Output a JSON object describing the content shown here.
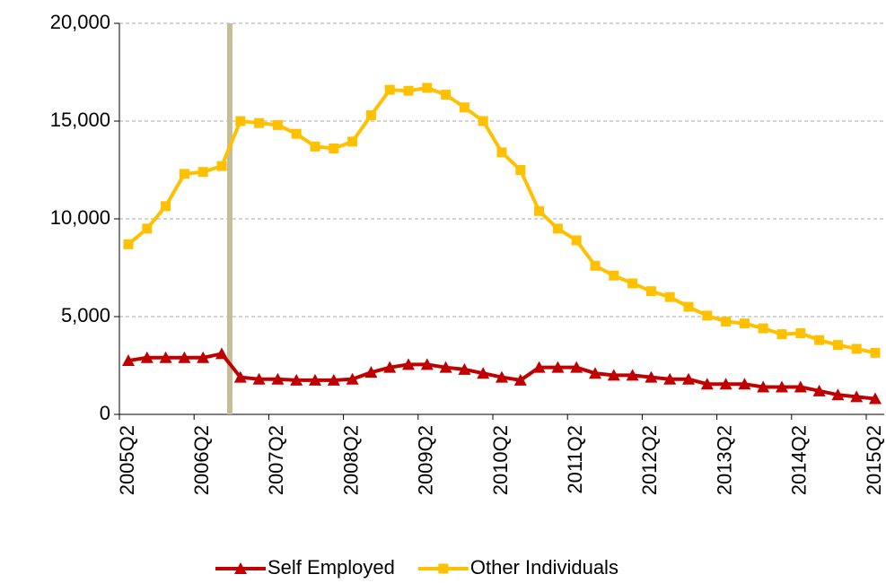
{
  "chart_data": {
    "type": "line",
    "categories": [
      "2005Q2",
      null,
      null,
      null,
      "2006Q2",
      null,
      null,
      null,
      "2007Q2",
      null,
      null,
      null,
      "2008Q2",
      null,
      null,
      null,
      "2009Q2",
      null,
      null,
      null,
      "2010Q2",
      null,
      null,
      null,
      "2011Q2",
      null,
      null,
      null,
      "2012Q2",
      null,
      null,
      null,
      "2013Q2",
      null,
      null,
      null,
      "2014Q2",
      null,
      null,
      null,
      "2015Q2"
    ],
    "series": [
      {
        "name": "Self Employed",
        "color": "#c00000",
        "marker": "triangle",
        "values": [
          2750,
          2900,
          2900,
          2900,
          2900,
          3100,
          1900,
          1800,
          1800,
          1750,
          1750,
          1750,
          1800,
          2150,
          2400,
          2550,
          2550,
          2400,
          2300,
          2100,
          1900,
          1750,
          2400,
          2400,
          2400,
          2100,
          2000,
          2000,
          1900,
          1800,
          1800,
          1550,
          1550,
          1550,
          1400,
          1400,
          1400,
          1200,
          1000,
          900,
          800
        ]
      },
      {
        "name": "Other Individuals",
        "color": "#ffc000",
        "marker": "square",
        "values": [
          8700,
          9500,
          10650,
          12300,
          12400,
          12700,
          15000,
          14900,
          14800,
          14350,
          13700,
          13600,
          13950,
          15300,
          16600,
          16550,
          16700,
          16350,
          15700,
          15000,
          13400,
          12500,
          10400,
          9500,
          8900,
          7600,
          7100,
          6700,
          6300,
          6000,
          5500,
          5050,
          4750,
          4650,
          4400,
          4100,
          4150,
          3800,
          3550,
          3350,
          3150
        ]
      }
    ],
    "ylim": [
      0,
      20000
    ],
    "yticks": [
      0,
      {
        "value": 5000,
        "label": "5,000"
      },
      {
        "value": 10000,
        "label": "10,000"
      },
      {
        "value": 15000,
        "label": "15,000"
      },
      {
        "value": 20000,
        "label": "20,000"
      }
    ],
    "grid": true,
    "legend": "bottom"
  }
}
